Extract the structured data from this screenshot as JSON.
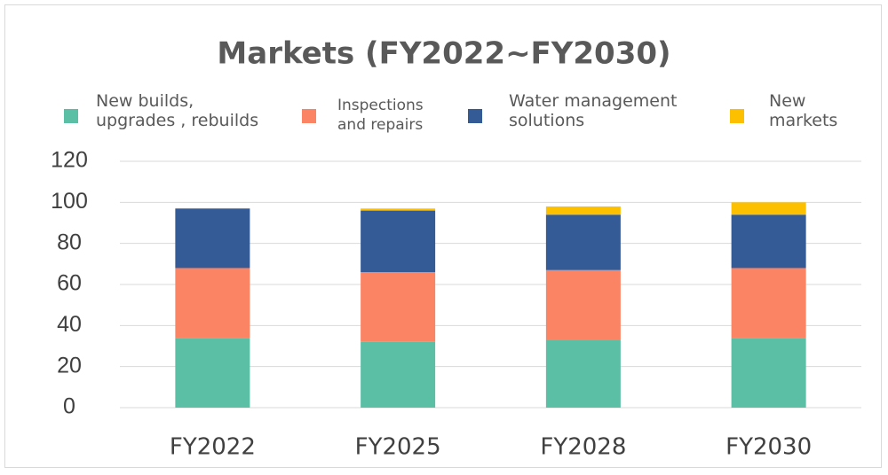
{
  "chart_data": {
    "type": "stacked_bar",
    "title": "Markets (FY2022~FY2030)",
    "categories": [
      "FY2022",
      "FY2025",
      "FY2028",
      "FY2030"
    ],
    "series": [
      {
        "name": "New builds,\nupgrades , rebuilds",
        "color": "#5bbfa6",
        "values": [
          34,
          32,
          33,
          34
        ]
      },
      {
        "name": "Inspections\nand repairs",
        "color": "#fb8465",
        "values": [
          34,
          34,
          34,
          34
        ]
      },
      {
        "name": "Water management\nsolutions",
        "color": "#355b96",
        "values": [
          29,
          30,
          27,
          26
        ]
      },
      {
        "name": "New\nmarkets",
        "color": "#fcc000",
        "values": [
          0,
          1,
          4,
          6
        ]
      }
    ],
    "ylim": [
      0,
      120
    ],
    "yticks": [
      0,
      20,
      40,
      60,
      80,
      100,
      120
    ],
    "grid": true
  }
}
